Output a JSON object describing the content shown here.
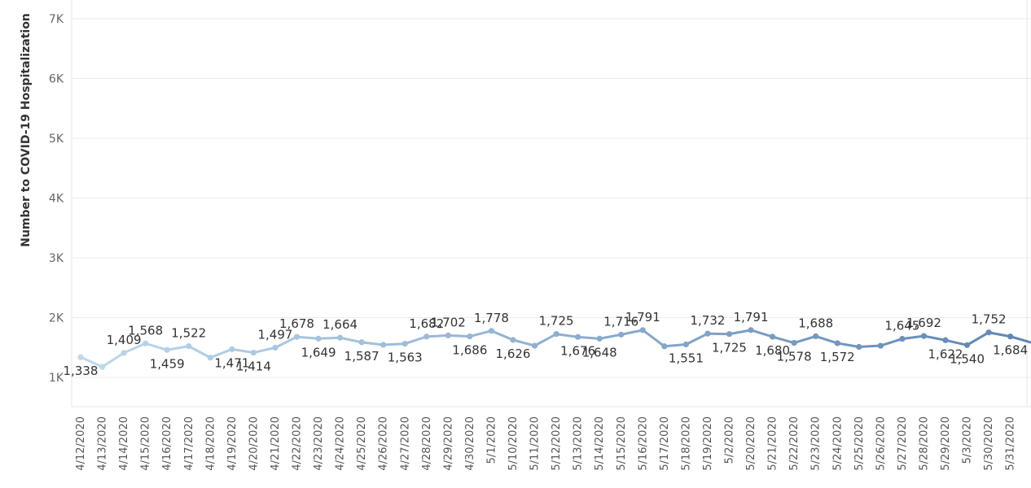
{
  "chart_data": {
    "type": "line",
    "ylabel": "Number to COVID-19 Hospitalization",
    "ylim": [
      0,
      7000
    ],
    "yticks": [
      {
        "value": 1000,
        "label": "1K"
      },
      {
        "value": 2000,
        "label": "2K"
      },
      {
        "value": 3000,
        "label": "3K"
      },
      {
        "value": 4000,
        "label": "4K"
      },
      {
        "value": 5000,
        "label": "5K"
      },
      {
        "value": 6000,
        "label": "6K"
      },
      {
        "value": 7000,
        "label": "7K"
      }
    ],
    "grid": true,
    "colors": {
      "start": "#bcd8ec",
      "end": "#5f86b4"
    },
    "points": [
      {
        "x": "4/12/2020",
        "y": 1338,
        "label": "1,338",
        "pos": "below"
      },
      {
        "x": "4/13/2020",
        "y": 1176,
        "label": "",
        "pos": "below"
      },
      {
        "x": "4/14/2020",
        "y": 1409,
        "label": "1,409",
        "pos": "above"
      },
      {
        "x": "4/15/2020",
        "y": 1568,
        "label": "1,568",
        "pos": "above"
      },
      {
        "x": "4/16/2020",
        "y": 1459,
        "label": "1,459",
        "pos": "below"
      },
      {
        "x": "4/17/2020",
        "y": 1522,
        "label": "1,522",
        "pos": "above"
      },
      {
        "x": "4/18/2020",
        "y": 1330,
        "label": "",
        "pos": "below"
      },
      {
        "x": "4/19/2020",
        "y": 1471,
        "label": "1,471",
        "pos": "below"
      },
      {
        "x": "4/20/2020",
        "y": 1414,
        "label": "1,414",
        "pos": "below"
      },
      {
        "x": "4/21/2020",
        "y": 1497,
        "label": "1,497",
        "pos": "above"
      },
      {
        "x": "4/22/2020",
        "y": 1678,
        "label": "1,678",
        "pos": "above"
      },
      {
        "x": "4/23/2020",
        "y": 1649,
        "label": "1,649",
        "pos": "below"
      },
      {
        "x": "4/24/2020",
        "y": 1664,
        "label": "1,664",
        "pos": "above"
      },
      {
        "x": "4/25/2020",
        "y": 1587,
        "label": "1,587",
        "pos": "below"
      },
      {
        "x": "4/26/2020",
        "y": 1545,
        "label": "",
        "pos": "below"
      },
      {
        "x": "4/27/2020",
        "y": 1563,
        "label": "1,563",
        "pos": "below"
      },
      {
        "x": "4/28/2020",
        "y": 1682,
        "label": "1,682",
        "pos": "above"
      },
      {
        "x": "4/29/2020",
        "y": 1702,
        "label": "1,702",
        "pos": "above"
      },
      {
        "x": "4/30/2020",
        "y": 1686,
        "label": "1,686",
        "pos": "below"
      },
      {
        "x": "5/1/2020",
        "y": 1778,
        "label": "1,778",
        "pos": "above"
      },
      {
        "x": "5/10/2020",
        "y": 1626,
        "label": "1,626",
        "pos": "below"
      },
      {
        "x": "5/11/2020",
        "y": 1530,
        "label": "",
        "pos": "below"
      },
      {
        "x": "5/12/2020",
        "y": 1725,
        "label": "1,725",
        "pos": "above"
      },
      {
        "x": "5/13/2020",
        "y": 1676,
        "label": "1,676",
        "pos": "below"
      },
      {
        "x": "5/14/2020",
        "y": 1648,
        "label": "1,648",
        "pos": "below"
      },
      {
        "x": "5/15/2020",
        "y": 1716,
        "label": "1,716",
        "pos": "above"
      },
      {
        "x": "5/16/2020",
        "y": 1791,
        "label": "1,791",
        "pos": "above"
      },
      {
        "x": "5/17/2020",
        "y": 1520,
        "label": "",
        "pos": "below"
      },
      {
        "x": "5/18/2020",
        "y": 1551,
        "label": "1,551",
        "pos": "below"
      },
      {
        "x": "5/19/2020",
        "y": 1732,
        "label": "1,732",
        "pos": "above"
      },
      {
        "x": "5/2/2020",
        "y": 1725,
        "label": "1,725",
        "pos": "below"
      },
      {
        "x": "5/20/2020",
        "y": 1791,
        "label": "1,791",
        "pos": "above"
      },
      {
        "x": "5/21/2020",
        "y": 1680,
        "label": "1,680",
        "pos": "below"
      },
      {
        "x": "5/22/2020",
        "y": 1578,
        "label": "1,578",
        "pos": "below"
      },
      {
        "x": "5/23/2020",
        "y": 1688,
        "label": "1,688",
        "pos": "above"
      },
      {
        "x": "5/24/2020",
        "y": 1572,
        "label": "1,572",
        "pos": "below"
      },
      {
        "x": "5/25/2020",
        "y": 1510,
        "label": "",
        "pos": "below"
      },
      {
        "x": "5/26/2020",
        "y": 1530,
        "label": "",
        "pos": "below"
      },
      {
        "x": "5/27/2020",
        "y": 1645,
        "label": "1,645",
        "pos": "above"
      },
      {
        "x": "5/28/2020",
        "y": 1692,
        "label": "1,692",
        "pos": "above"
      },
      {
        "x": "5/29/2020",
        "y": 1622,
        "label": "1,622",
        "pos": "below"
      },
      {
        "x": "5/3/2020",
        "y": 1540,
        "label": "1,540",
        "pos": "below"
      },
      {
        "x": "5/30/2020",
        "y": 1752,
        "label": "1,752",
        "pos": "above"
      },
      {
        "x": "5/31/2020",
        "y": 1684,
        "label": "1,684",
        "pos": "below"
      },
      {
        "x": "",
        "y": 1580,
        "label": "",
        "pos": "below"
      }
    ]
  }
}
